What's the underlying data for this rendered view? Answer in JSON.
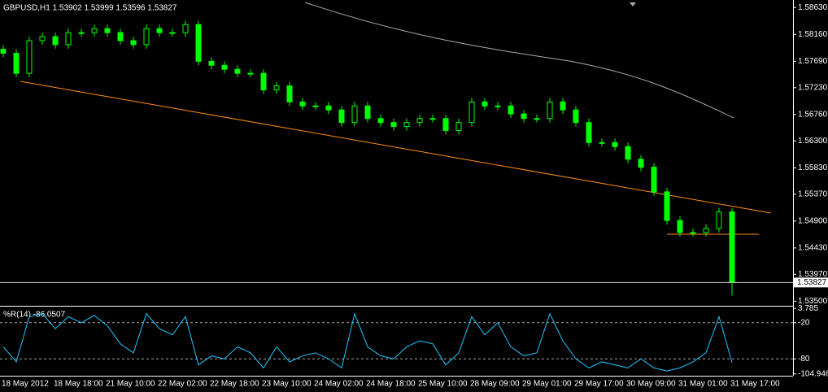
{
  "chart_data": [
    {
      "type": "candlestick",
      "title": "GBPUSD,H1  1.53902 1.53999 1.53596 1.53827",
      "color": "#00ff00",
      "categories": [
        "18 May 2012",
        null,
        null,
        null,
        "18 May 18:00",
        null,
        null,
        null,
        "21 May 10:00",
        null,
        null,
        null,
        "22 May 02:00",
        null,
        null,
        null,
        "22 May 18:00",
        null,
        null,
        null,
        "23 May 10:00",
        null,
        null,
        null,
        "24 May 02:00",
        null,
        null,
        null,
        "24 May 18:00",
        null,
        null,
        null,
        "25 May 10:00",
        null,
        null,
        null,
        "28 May 09:00",
        null,
        null,
        null,
        "29 May 01:00",
        null,
        null,
        null,
        "29 May 17:00",
        null,
        null,
        null,
        "30 May 09:00",
        null,
        null,
        null,
        "31 May 01:00",
        null,
        null,
        null,
        "31 May 17:00"
      ],
      "open": [
        1.579,
        1.5783,
        1.5748,
        1.5805,
        1.5812,
        1.5798,
        1.5819,
        1.5819,
        1.5826,
        1.5819,
        1.5805,
        1.5798,
        1.5826,
        1.5819,
        1.5819,
        1.5833,
        1.5769,
        1.5762,
        1.5755,
        1.5748,
        1.5748,
        1.5719,
        1.5726,
        1.5698,
        1.5691,
        1.5691,
        1.5684,
        1.5662,
        1.5691,
        1.5669,
        1.5662,
        1.5655,
        1.5662,
        1.5669,
        1.5669,
        1.5648,
        1.5662,
        1.5698,
        1.5691,
        1.5691,
        1.5677,
        1.5669,
        1.5669,
        1.5698,
        1.5684,
        1.5662,
        1.5627,
        1.5627,
        1.562,
        1.5598,
        1.5584,
        1.5541,
        1.5491,
        1.547,
        1.547,
        1.5477,
        1.5506
      ],
      "high": [
        1.5797,
        1.579,
        1.5812,
        1.5819,
        1.5819,
        1.5826,
        1.5826,
        1.5833,
        1.5833,
        1.5826,
        1.5812,
        1.5833,
        1.5833,
        1.5826,
        1.584,
        1.584,
        1.5776,
        1.5769,
        1.5762,
        1.5755,
        1.5755,
        1.5733,
        1.5733,
        1.5705,
        1.5698,
        1.5698,
        1.5691,
        1.5698,
        1.5698,
        1.5676,
        1.5669,
        1.5669,
        1.5676,
        1.5676,
        1.5676,
        1.5669,
        1.5705,
        1.5705,
        1.5698,
        1.5698,
        1.5684,
        1.5676,
        1.5705,
        1.5705,
        1.5691,
        1.5669,
        1.5634,
        1.5634,
        1.5627,
        1.5605,
        1.5591,
        1.5548,
        1.5498,
        1.5477,
        1.5484,
        1.5513,
        1.5513
      ],
      "low": [
        1.5776,
        1.5741,
        1.5741,
        1.5798,
        1.5791,
        1.5791,
        1.5812,
        1.5812,
        1.5812,
        1.5798,
        1.5791,
        1.5791,
        1.5812,
        1.5812,
        1.5812,
        1.5762,
        1.5755,
        1.5748,
        1.5741,
        1.5741,
        1.5712,
        1.5712,
        1.5691,
        1.5684,
        1.5684,
        1.5677,
        1.5655,
        1.5655,
        1.5662,
        1.5655,
        1.5648,
        1.5648,
        1.5655,
        1.5662,
        1.5641,
        1.5641,
        1.5655,
        1.5684,
        1.5684,
        1.567,
        1.5662,
        1.5662,
        1.5662,
        1.5677,
        1.5655,
        1.562,
        1.562,
        1.5613,
        1.5591,
        1.5577,
        1.5534,
        1.5484,
        1.5463,
        1.5463,
        1.5463,
        1.547,
        1.536
      ],
      "close": [
        1.5783,
        1.5748,
        1.5805,
        1.5812,
        1.5798,
        1.5819,
        1.5819,
        1.5826,
        1.5819,
        1.5805,
        1.5798,
        1.5826,
        1.5819,
        1.5819,
        1.5833,
        1.5769,
        1.5762,
        1.5755,
        1.5748,
        1.5748,
        1.5719,
        1.5726,
        1.5698,
        1.5691,
        1.5691,
        1.5684,
        1.5662,
        1.5691,
        1.5669,
        1.5662,
        1.5655,
        1.5662,
        1.5669,
        1.5669,
        1.5648,
        1.5662,
        1.5698,
        1.5691,
        1.5691,
        1.5677,
        1.5669,
        1.5669,
        1.5698,
        1.5684,
        1.5662,
        1.5627,
        1.5627,
        1.562,
        1.5598,
        1.5584,
        1.5541,
        1.5491,
        1.547,
        1.547,
        1.5477,
        1.5506,
        1.53827
      ],
      "current_price": {
        "value": 1.53827,
        "label": "1.53827"
      },
      "ylim": [
        1.5342,
        1.5876
      ],
      "yticks": [
        {
          "value": 1.5863,
          "label": "1.58630"
        },
        {
          "value": 1.5816,
          "label": "1.58160"
        },
        {
          "value": 1.5769,
          "label": "1.57690"
        },
        {
          "value": 1.5723,
          "label": "1.57230"
        },
        {
          "value": 1.5676,
          "label": "1.56760"
        },
        {
          "value": 1.563,
          "label": "1.56300"
        },
        {
          "value": 1.5583,
          "label": "1.55830"
        },
        {
          "value": 1.5537,
          "label": "1.55370"
        },
        {
          "value": 1.549,
          "label": "1.54900"
        },
        {
          "value": 1.5443,
          "label": "1.54430"
        },
        {
          "value": 1.5397,
          "label": "1.53970"
        },
        {
          "value": 1.535,
          "label": "1.53500"
        }
      ]
    },
    {
      "type": "line",
      "title": "%R(14) -86.0507",
      "color": "#1fc8ff",
      "values": [
        -60,
        -85,
        -10,
        -5,
        -30,
        -10,
        -20,
        -8,
        -25,
        -55,
        -70,
        -5,
        -30,
        -40,
        -10,
        -90,
        -75,
        -80,
        -60,
        -70,
        -95,
        -60,
        -85,
        -75,
        -70,
        -80,
        -95,
        -5,
        -60,
        -75,
        -80,
        -60,
        -50,
        -55,
        -90,
        -70,
        -10,
        -40,
        -20,
        -60,
        -75,
        -70,
        -5,
        -50,
        -80,
        -95,
        -85,
        -90,
        -95,
        -80,
        -95,
        -100,
        -95,
        -85,
        -70,
        -10,
        -86.0507
      ],
      "ylim": [
        -108,
        4
      ],
      "yticks": [
        3.785,
        -20,
        -80,
        -104.946
      ]
    }
  ]
}
